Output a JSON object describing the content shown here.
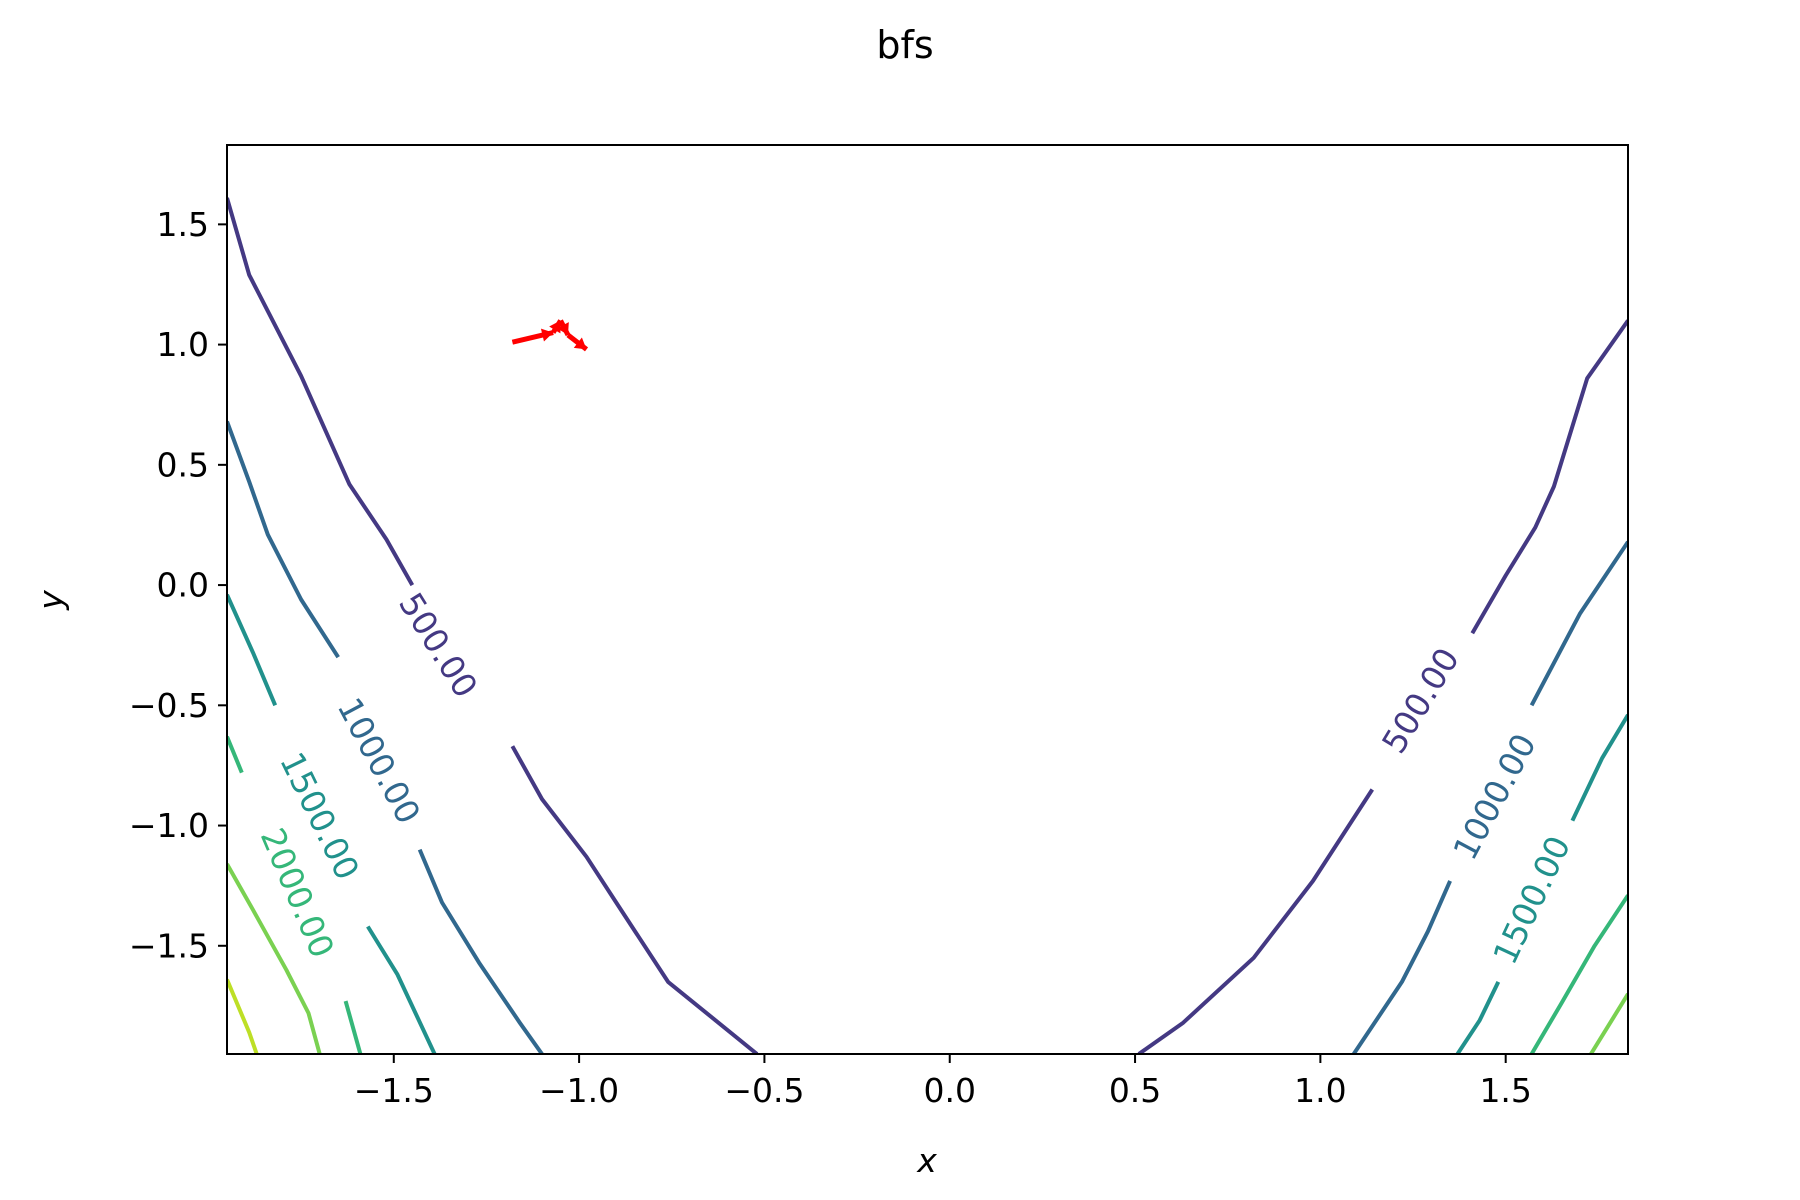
{
  "chart_data": {
    "type": "contour",
    "title": "bfs",
    "xlabel": "x",
    "ylabel": "y",
    "xlim": [
      -1.95,
      1.83
    ],
    "ylim": [
      -1.95,
      1.83
    ],
    "x_ticks": [
      -1.5,
      -1.0,
      -0.5,
      0.0,
      0.5,
      1.0,
      1.5
    ],
    "y_ticks": [
      -1.5,
      -1.0,
      -0.5,
      0.0,
      0.5,
      1.0,
      1.5
    ],
    "x_tick_labels": [
      "−1.5",
      "−1.0",
      "−0.5",
      "0.0",
      "0.5",
      "1.0",
      "1.5"
    ],
    "y_tick_labels": [
      "−1.5",
      "−1.0",
      "−0.5",
      "0.0",
      "0.5",
      "1.0",
      "1.5"
    ],
    "grid": false,
    "contours": [
      {
        "level": 500,
        "label": "500.00",
        "color": "#443983",
        "lines": [
          [
            [
              -1.95,
              1.61
            ],
            [
              -1.89,
              1.29
            ],
            [
              -1.75,
              0.87
            ],
            [
              -1.62,
              0.42
            ],
            [
              -1.52,
              0.19
            ],
            [
              -1.45,
              0.0
            ]
          ],
          [
            [
              -1.18,
              -0.67
            ],
            [
              -1.1,
              -0.89
            ],
            [
              -0.98,
              -1.13
            ],
            [
              -0.9,
              -1.32
            ],
            [
              -0.76,
              -1.65
            ],
            [
              -0.52,
              -1.95
            ]
          ],
          [
            [
              0.51,
              -1.95
            ],
            [
              0.63,
              -1.82
            ],
            [
              0.82,
              -1.55
            ],
            [
              0.98,
              -1.23
            ],
            [
              1.14,
              -0.85
            ]
          ],
          [
            [
              1.41,
              -0.2
            ],
            [
              1.5,
              0.04
            ],
            [
              1.58,
              0.24
            ],
            [
              1.63,
              0.41
            ],
            [
              1.72,
              0.86
            ],
            [
              1.83,
              1.1
            ]
          ]
        ],
        "labels": [
          {
            "x": -1.38,
            "y": -0.25,
            "angle": 58
          },
          {
            "x": 1.27,
            "y": -0.48,
            "angle": -59
          }
        ]
      },
      {
        "level": 1000,
        "label": "1000.00",
        "color": "#31688e",
        "lines": [
          [
            [
              -1.95,
              0.68
            ],
            [
              -1.89,
              0.43
            ],
            [
              -1.84,
              0.21
            ],
            [
              -1.75,
              -0.06
            ],
            [
              -1.65,
              -0.3
            ]
          ],
          [
            [
              -1.43,
              -1.1
            ],
            [
              -1.37,
              -1.32
            ],
            [
              -1.27,
              -1.57
            ],
            [
              -1.16,
              -1.82
            ],
            [
              -1.1,
              -1.95
            ]
          ],
          [
            [
              1.09,
              -1.95
            ],
            [
              1.22,
              -1.65
            ],
            [
              1.29,
              -1.44
            ],
            [
              1.35,
              -1.23
            ]
          ],
          [
            [
              1.57,
              -0.5
            ],
            [
              1.7,
              -0.12
            ],
            [
              1.83,
              0.18
            ]
          ]
        ],
        "labels": [
          {
            "x": -1.54,
            "y": -0.73,
            "angle": 62
          },
          {
            "x": 1.47,
            "y": -0.88,
            "angle": -62
          }
        ]
      },
      {
        "level": 1500,
        "label": "1500.00",
        "color": "#21918c",
        "lines": [
          [
            [
              -1.95,
              -0.04
            ],
            [
              -1.88,
              -0.28
            ],
            [
              -1.82,
              -0.5
            ]
          ],
          [
            [
              -1.57,
              -1.42
            ],
            [
              -1.49,
              -1.62
            ],
            [
              -1.39,
              -1.95
            ]
          ],
          [
            [
              1.37,
              -1.95
            ],
            [
              1.43,
              -1.81
            ],
            [
              1.48,
              -1.65
            ]
          ],
          [
            [
              1.68,
              -0.98
            ],
            [
              1.76,
              -0.72
            ],
            [
              1.83,
              -0.54
            ]
          ]
        ],
        "labels": [
          {
            "x": -1.7,
            "y": -0.96,
            "angle": 64
          },
          {
            "x": 1.57,
            "y": -1.31,
            "angle": -65
          }
        ]
      },
      {
        "level": 2000,
        "label": "2000.00",
        "color": "#35b779",
        "lines": [
          [
            [
              -1.95,
              -0.63
            ],
            [
              -1.91,
              -0.78
            ]
          ],
          [
            [
              -1.63,
              -1.73
            ],
            [
              -1.59,
              -1.95
            ]
          ],
          [
            [
              1.57,
              -1.95
            ],
            [
              1.65,
              -1.74
            ],
            [
              1.74,
              -1.5
            ],
            [
              1.83,
              -1.29
            ]
          ]
        ],
        "labels": [
          {
            "x": -1.76,
            "y": -1.28,
            "angle": 67
          }
        ]
      },
      {
        "level": 2500,
        "label": "",
        "color": "#7ad151",
        "lines": [
          [
            [
              -1.95,
              -1.16
            ],
            [
              -1.88,
              -1.35
            ],
            [
              -1.79,
              -1.6
            ],
            [
              -1.73,
              -1.78
            ],
            [
              -1.7,
              -1.95
            ]
          ],
          [
            [
              1.73,
              -1.95
            ],
            [
              1.79,
              -1.8
            ],
            [
              1.83,
              -1.7
            ]
          ]
        ],
        "labels": []
      },
      {
        "level": 3000,
        "label": "",
        "color": "#bddf26",
        "lines": [
          [
            [
              -1.95,
              -1.64
            ],
            [
              -1.89,
              -1.86
            ],
            [
              -1.87,
              -1.95
            ]
          ]
        ],
        "labels": []
      }
    ],
    "path": {
      "color": "#ff0000",
      "points": [
        [
          -1.18,
          1.01
        ],
        [
          -1.07,
          1.05
        ],
        [
          -1.05,
          1.1
        ],
        [
          -1.03,
          1.04
        ],
        [
          -0.98,
          0.98
        ]
      ]
    }
  }
}
